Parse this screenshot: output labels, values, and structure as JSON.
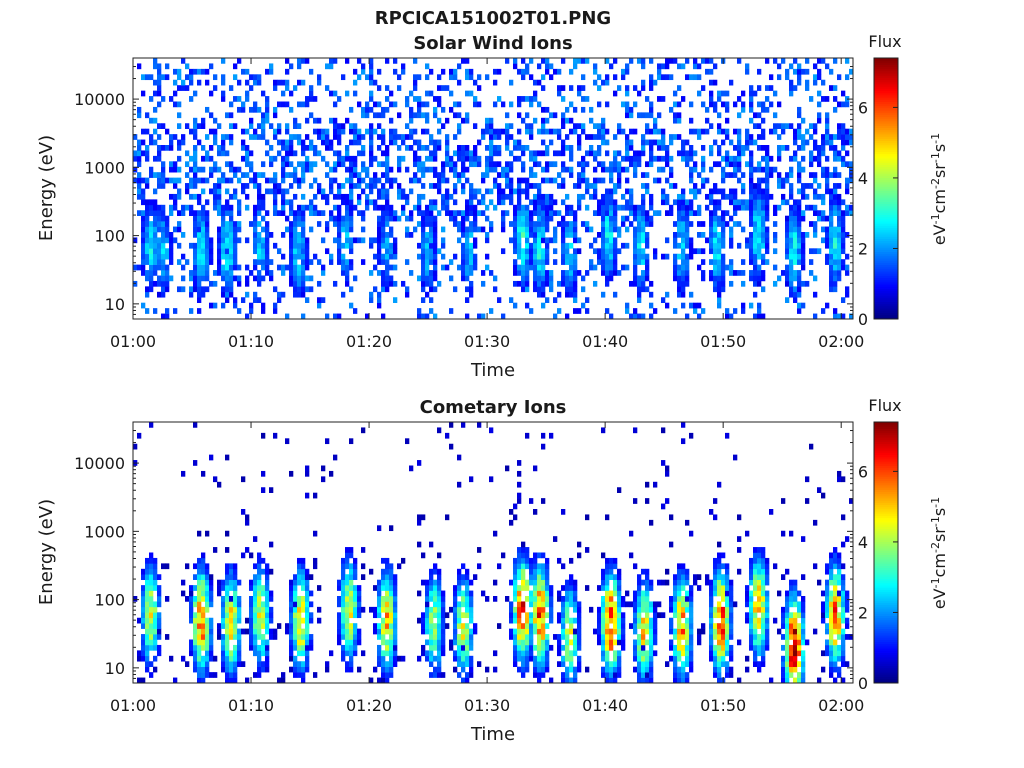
{
  "figure": {
    "title": "RPCICA151002T01.PNG"
  },
  "colormap": {
    "name": "jet",
    "stops": [
      "#00007f",
      "#0000ff",
      "#007fff",
      "#00ffff",
      "#7fff7f",
      "#ffff00",
      "#ff7f00",
      "#ff0000",
      "#7f0000"
    ]
  },
  "chart_data": [
    {
      "type": "heatmap",
      "title": "Solar Wind Ions",
      "xlabel": "Time",
      "ylabel": "Energy (eV)",
      "x_ticks": [
        "01:00",
        "01:10",
        "01:20",
        "01:30",
        "01:40",
        "01:50",
        "02:00"
      ],
      "x_range_minutes": [
        0,
        61
      ],
      "y_scale": "log",
      "y_ticks": [
        "10",
        "100",
        "1000",
        "10000"
      ],
      "y_tick_values": [
        10,
        100,
        1000,
        10000
      ],
      "y_range": [
        6,
        40000
      ],
      "colorbar": {
        "header": "Flux",
        "label": "eV-1cm-2sr-1s-1",
        "ticks": [
          "0",
          "2",
          "4",
          "6"
        ],
        "tick_values": [
          0,
          2,
          4,
          6
        ],
        "range": [
          0,
          7.4
        ]
      },
      "bursts": [
        {
          "t": 1.5,
          "e": 70,
          "flux": 2.6
        },
        {
          "t": 2.5,
          "e": 60,
          "flux": 2.4
        },
        {
          "t": 5.8,
          "e": 60,
          "flux": 2.8
        },
        {
          "t": 8.0,
          "e": 60,
          "flux": 2.7
        },
        {
          "t": 10.8,
          "e": 80,
          "flux": 2.4
        },
        {
          "t": 14.0,
          "e": 55,
          "flux": 2.5
        },
        {
          "t": 18.0,
          "e": 90,
          "flux": 2.3
        },
        {
          "t": 21.5,
          "e": 70,
          "flux": 2.1
        },
        {
          "t": 25.0,
          "e": 60,
          "flux": 2.2
        },
        {
          "t": 28.5,
          "e": 60,
          "flux": 2.3
        },
        {
          "t": 33.0,
          "e": 90,
          "flux": 3.0
        },
        {
          "t": 34.5,
          "e": 70,
          "flux": 2.9
        },
        {
          "t": 37.0,
          "e": 60,
          "flux": 2.5
        },
        {
          "t": 40.3,
          "e": 100,
          "flux": 2.7
        },
        {
          "t": 43.0,
          "e": 70,
          "flux": 2.6
        },
        {
          "t": 46.5,
          "e": 70,
          "flux": 2.5
        },
        {
          "t": 49.5,
          "e": 70,
          "flux": 2.6
        },
        {
          "t": 53.0,
          "e": 110,
          "flux": 2.8
        },
        {
          "t": 56.0,
          "e": 60,
          "flux": 2.7
        },
        {
          "t": 59.5,
          "e": 80,
          "flux": 2.7
        }
      ],
      "background_flux": 1.4
    },
    {
      "type": "heatmap",
      "title": "Cometary Ions",
      "xlabel": "Time",
      "ylabel": "Energy (eV)",
      "x_ticks": [
        "01:00",
        "01:10",
        "01:20",
        "01:30",
        "01:40",
        "01:50",
        "02:00"
      ],
      "x_range_minutes": [
        0,
        61
      ],
      "y_scale": "log",
      "y_ticks": [
        "10",
        "100",
        "1000",
        "10000"
      ],
      "y_tick_values": [
        10,
        100,
        1000,
        10000
      ],
      "y_range": [
        6,
        40000
      ],
      "colorbar": {
        "header": "Flux",
        "label": "eV-1cm-2sr-1s-1",
        "ticks": [
          "0",
          "2",
          "4",
          "6"
        ],
        "tick_values": [
          0,
          2,
          4,
          6
        ],
        "range": [
          0,
          7.4
        ]
      },
      "bursts": [
        {
          "t": 1.5,
          "e": 60,
          "flux": 4.3
        },
        {
          "t": 5.8,
          "e": 50,
          "flux": 5.8
        },
        {
          "t": 8.3,
          "e": 45,
          "flux": 4.8
        },
        {
          "t": 10.8,
          "e": 60,
          "flux": 4.4
        },
        {
          "t": 14.2,
          "e": 50,
          "flux": 5.0
        },
        {
          "t": 18.3,
          "e": 70,
          "flux": 4.6
        },
        {
          "t": 21.5,
          "e": 50,
          "flux": 5.0
        },
        {
          "t": 25.5,
          "e": 45,
          "flux": 4.0
        },
        {
          "t": 28.0,
          "e": 40,
          "flux": 4.4
        },
        {
          "t": 33.0,
          "e": 70,
          "flux": 6.2
        },
        {
          "t": 34.5,
          "e": 60,
          "flux": 5.9
        },
        {
          "t": 37.0,
          "e": 30,
          "flux": 4.2
        },
        {
          "t": 40.5,
          "e": 45,
          "flux": 6.4
        },
        {
          "t": 43.3,
          "e": 35,
          "flux": 4.9
        },
        {
          "t": 46.5,
          "e": 40,
          "flux": 5.4
        },
        {
          "t": 49.8,
          "e": 50,
          "flux": 6.2
        },
        {
          "t": 53.0,
          "e": 80,
          "flux": 5.1
        },
        {
          "t": 56.0,
          "e": 20,
          "flux": 7.0
        },
        {
          "t": 59.5,
          "e": 60,
          "flux": 5.7
        }
      ],
      "background_flux": 0.5
    }
  ]
}
